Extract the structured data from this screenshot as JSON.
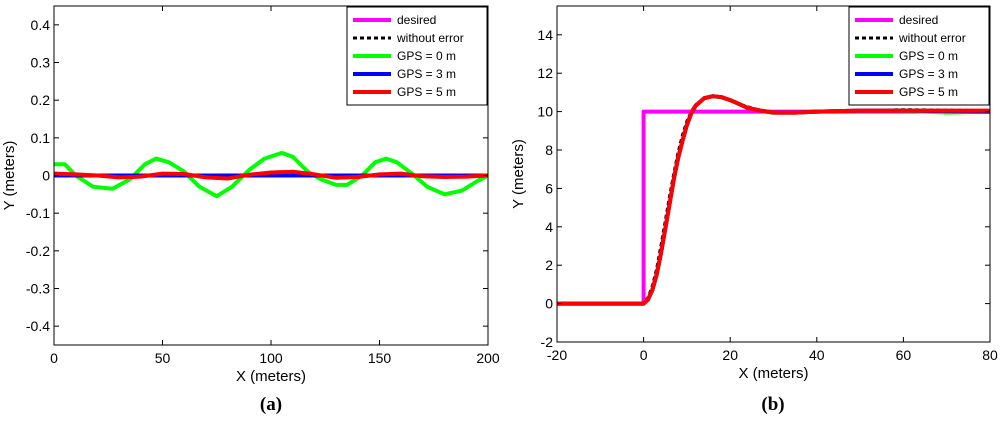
{
  "chart_data": [
    {
      "type": "line",
      "caption": "(a)",
      "xlabel": "X (meters)",
      "ylabel": "Y (meters)",
      "xlim": [
        0,
        200
      ],
      "ylim": [
        -0.45,
        0.45
      ],
      "xticks": [
        0,
        50,
        100,
        150,
        200
      ],
      "yticks": [
        -0.4,
        -0.3,
        -0.2,
        -0.1,
        0,
        0.1,
        0.2,
        0.3,
        0.4
      ],
      "xtick_labels": [
        "0",
        "50",
        "100",
        "150",
        "200"
      ],
      "ytick_labels": [
        "-0.4",
        "-0.3",
        "-0.2",
        "-0.1",
        "0",
        "0.1",
        "0.2",
        "0.3",
        "0.4"
      ],
      "grid": false,
      "legend": "top-right",
      "series": [
        {
          "name": "desired",
          "color": "#ff00ff",
          "dash": "solid",
          "x": [
            0,
            200
          ],
          "y": [
            0,
            0
          ]
        },
        {
          "name": "without error",
          "color": "#000000",
          "dash": "dotted",
          "x": [
            0,
            200
          ],
          "y": [
            0,
            0
          ]
        },
        {
          "name": "GPS = 0 m",
          "color": "#00ff00",
          "dash": "solid",
          "x": [
            0,
            5,
            10,
            18,
            27,
            35,
            42,
            47,
            53,
            60,
            67,
            75,
            82,
            90,
            97,
            105,
            110,
            117,
            123,
            130,
            135,
            142,
            148,
            153,
            158,
            165,
            172,
            180,
            188,
            195,
            200
          ],
          "y": [
            0.03,
            0.03,
            0.0,
            -0.03,
            -0.035,
            -0.01,
            0.03,
            0.045,
            0.035,
            0.01,
            -0.03,
            -0.055,
            -0.03,
            0.015,
            0.045,
            0.06,
            0.05,
            0.01,
            -0.01,
            -0.025,
            -0.025,
            0.0,
            0.035,
            0.045,
            0.035,
            0.005,
            -0.03,
            -0.05,
            -0.04,
            -0.015,
            0.0
          ]
        },
        {
          "name": "GPS = 3 m",
          "color": "#0000ff",
          "dash": "solid",
          "x": [
            0,
            200
          ],
          "y": [
            0,
            0
          ]
        },
        {
          "name": "GPS = 5 m",
          "color": "#ff0000",
          "dash": "solid",
          "x": [
            0,
            10,
            20,
            30,
            40,
            50,
            60,
            70,
            80,
            90,
            100,
            110,
            120,
            130,
            140,
            150,
            160,
            170,
            180,
            190,
            200
          ],
          "y": [
            0.005,
            0.003,
            0.0,
            -0.005,
            -0.003,
            0.005,
            0.004,
            -0.005,
            -0.008,
            0.002,
            0.008,
            0.01,
            0.003,
            -0.006,
            -0.004,
            0.003,
            0.005,
            -0.002,
            -0.004,
            -0.003,
            0.0
          ]
        }
      ]
    },
    {
      "type": "line",
      "caption": "(b)",
      "xlabel": "X (meters)",
      "ylabel": "Y (meters)",
      "xlim": [
        -20,
        80
      ],
      "ylim": [
        -2,
        15.5
      ],
      "xticks": [
        -20,
        0,
        20,
        40,
        60,
        80
      ],
      "yticks": [
        -2,
        0,
        2,
        4,
        6,
        8,
        10,
        12,
        14
      ],
      "xtick_labels": [
        "-20",
        "0",
        "20",
        "40",
        "60",
        "80"
      ],
      "ytick_labels": [
        "-2",
        "0",
        "2",
        "4",
        "6",
        "8",
        "10",
        "12",
        "14"
      ],
      "grid": false,
      "legend": "top-right",
      "series": [
        {
          "name": "desired",
          "color": "#ff00ff",
          "dash": "solid",
          "x": [
            -20,
            0,
            0,
            80
          ],
          "y": [
            0,
            0,
            10,
            10
          ]
        },
        {
          "name": "without error",
          "color": "#000000",
          "dash": "dotted",
          "x": [
            -20,
            0,
            1,
            2,
            3,
            4,
            5,
            6,
            7,
            8,
            9,
            10,
            11,
            12,
            14,
            16,
            18,
            20,
            22,
            24,
            27,
            30,
            35,
            40,
            50,
            60,
            80
          ],
          "y": [
            0,
            0,
            0.3,
            0.9,
            1.8,
            3.0,
            4.3,
            5.6,
            6.8,
            7.9,
            8.8,
            9.5,
            10.0,
            10.35,
            10.7,
            10.8,
            10.75,
            10.6,
            10.4,
            10.25,
            10.05,
            9.95,
            9.95,
            10.0,
            10.05,
            10.1,
            10.05
          ]
        },
        {
          "name": "GPS = 0 m",
          "color": "#00ff00",
          "dash": "solid",
          "x": [
            -20,
            0,
            1,
            2,
            3,
            4,
            5,
            6,
            7,
            8,
            9,
            10,
            11,
            12,
            14,
            16,
            18,
            20,
            22,
            24,
            27,
            30,
            35,
            40,
            50,
            60,
            70,
            80
          ],
          "y": [
            0,
            0,
            0.2,
            0.7,
            1.5,
            2.6,
            3.9,
            5.2,
            6.5,
            7.6,
            8.5,
            9.3,
            9.9,
            10.3,
            10.7,
            10.8,
            10.75,
            10.6,
            10.4,
            10.2,
            10.05,
            9.95,
            9.95,
            10.0,
            10.05,
            10.05,
            9.95,
            10.0
          ]
        },
        {
          "name": "GPS = 3 m",
          "color": "#0000ff",
          "dash": "solid",
          "x": [
            -20,
            0,
            1,
            2,
            3,
            4,
            5,
            6,
            7,
            8,
            9,
            10,
            11,
            12,
            14,
            16,
            18,
            20,
            22,
            24,
            27,
            30,
            35,
            40,
            50,
            60,
            80
          ],
          "y": [
            0,
            0,
            0.2,
            0.7,
            1.5,
            2.6,
            3.9,
            5.2,
            6.5,
            7.6,
            8.5,
            9.3,
            9.9,
            10.3,
            10.7,
            10.8,
            10.75,
            10.6,
            10.4,
            10.2,
            10.05,
            9.95,
            9.95,
            10.0,
            10.05,
            10.05,
            10.0
          ]
        },
        {
          "name": "GPS = 5 m",
          "color": "#ff0000",
          "dash": "solid",
          "x": [
            -20,
            0,
            1,
            2,
            3,
            4,
            5,
            6,
            7,
            8,
            9,
            10,
            11,
            12,
            14,
            16,
            18,
            20,
            22,
            24,
            27,
            30,
            35,
            40,
            50,
            60,
            80
          ],
          "y": [
            0,
            0,
            0.2,
            0.7,
            1.5,
            2.6,
            3.9,
            5.2,
            6.5,
            7.6,
            8.5,
            9.3,
            9.9,
            10.3,
            10.7,
            10.8,
            10.75,
            10.6,
            10.4,
            10.2,
            10.05,
            9.95,
            9.95,
            10.0,
            10.05,
            10.05,
            10.05
          ]
        }
      ]
    }
  ]
}
